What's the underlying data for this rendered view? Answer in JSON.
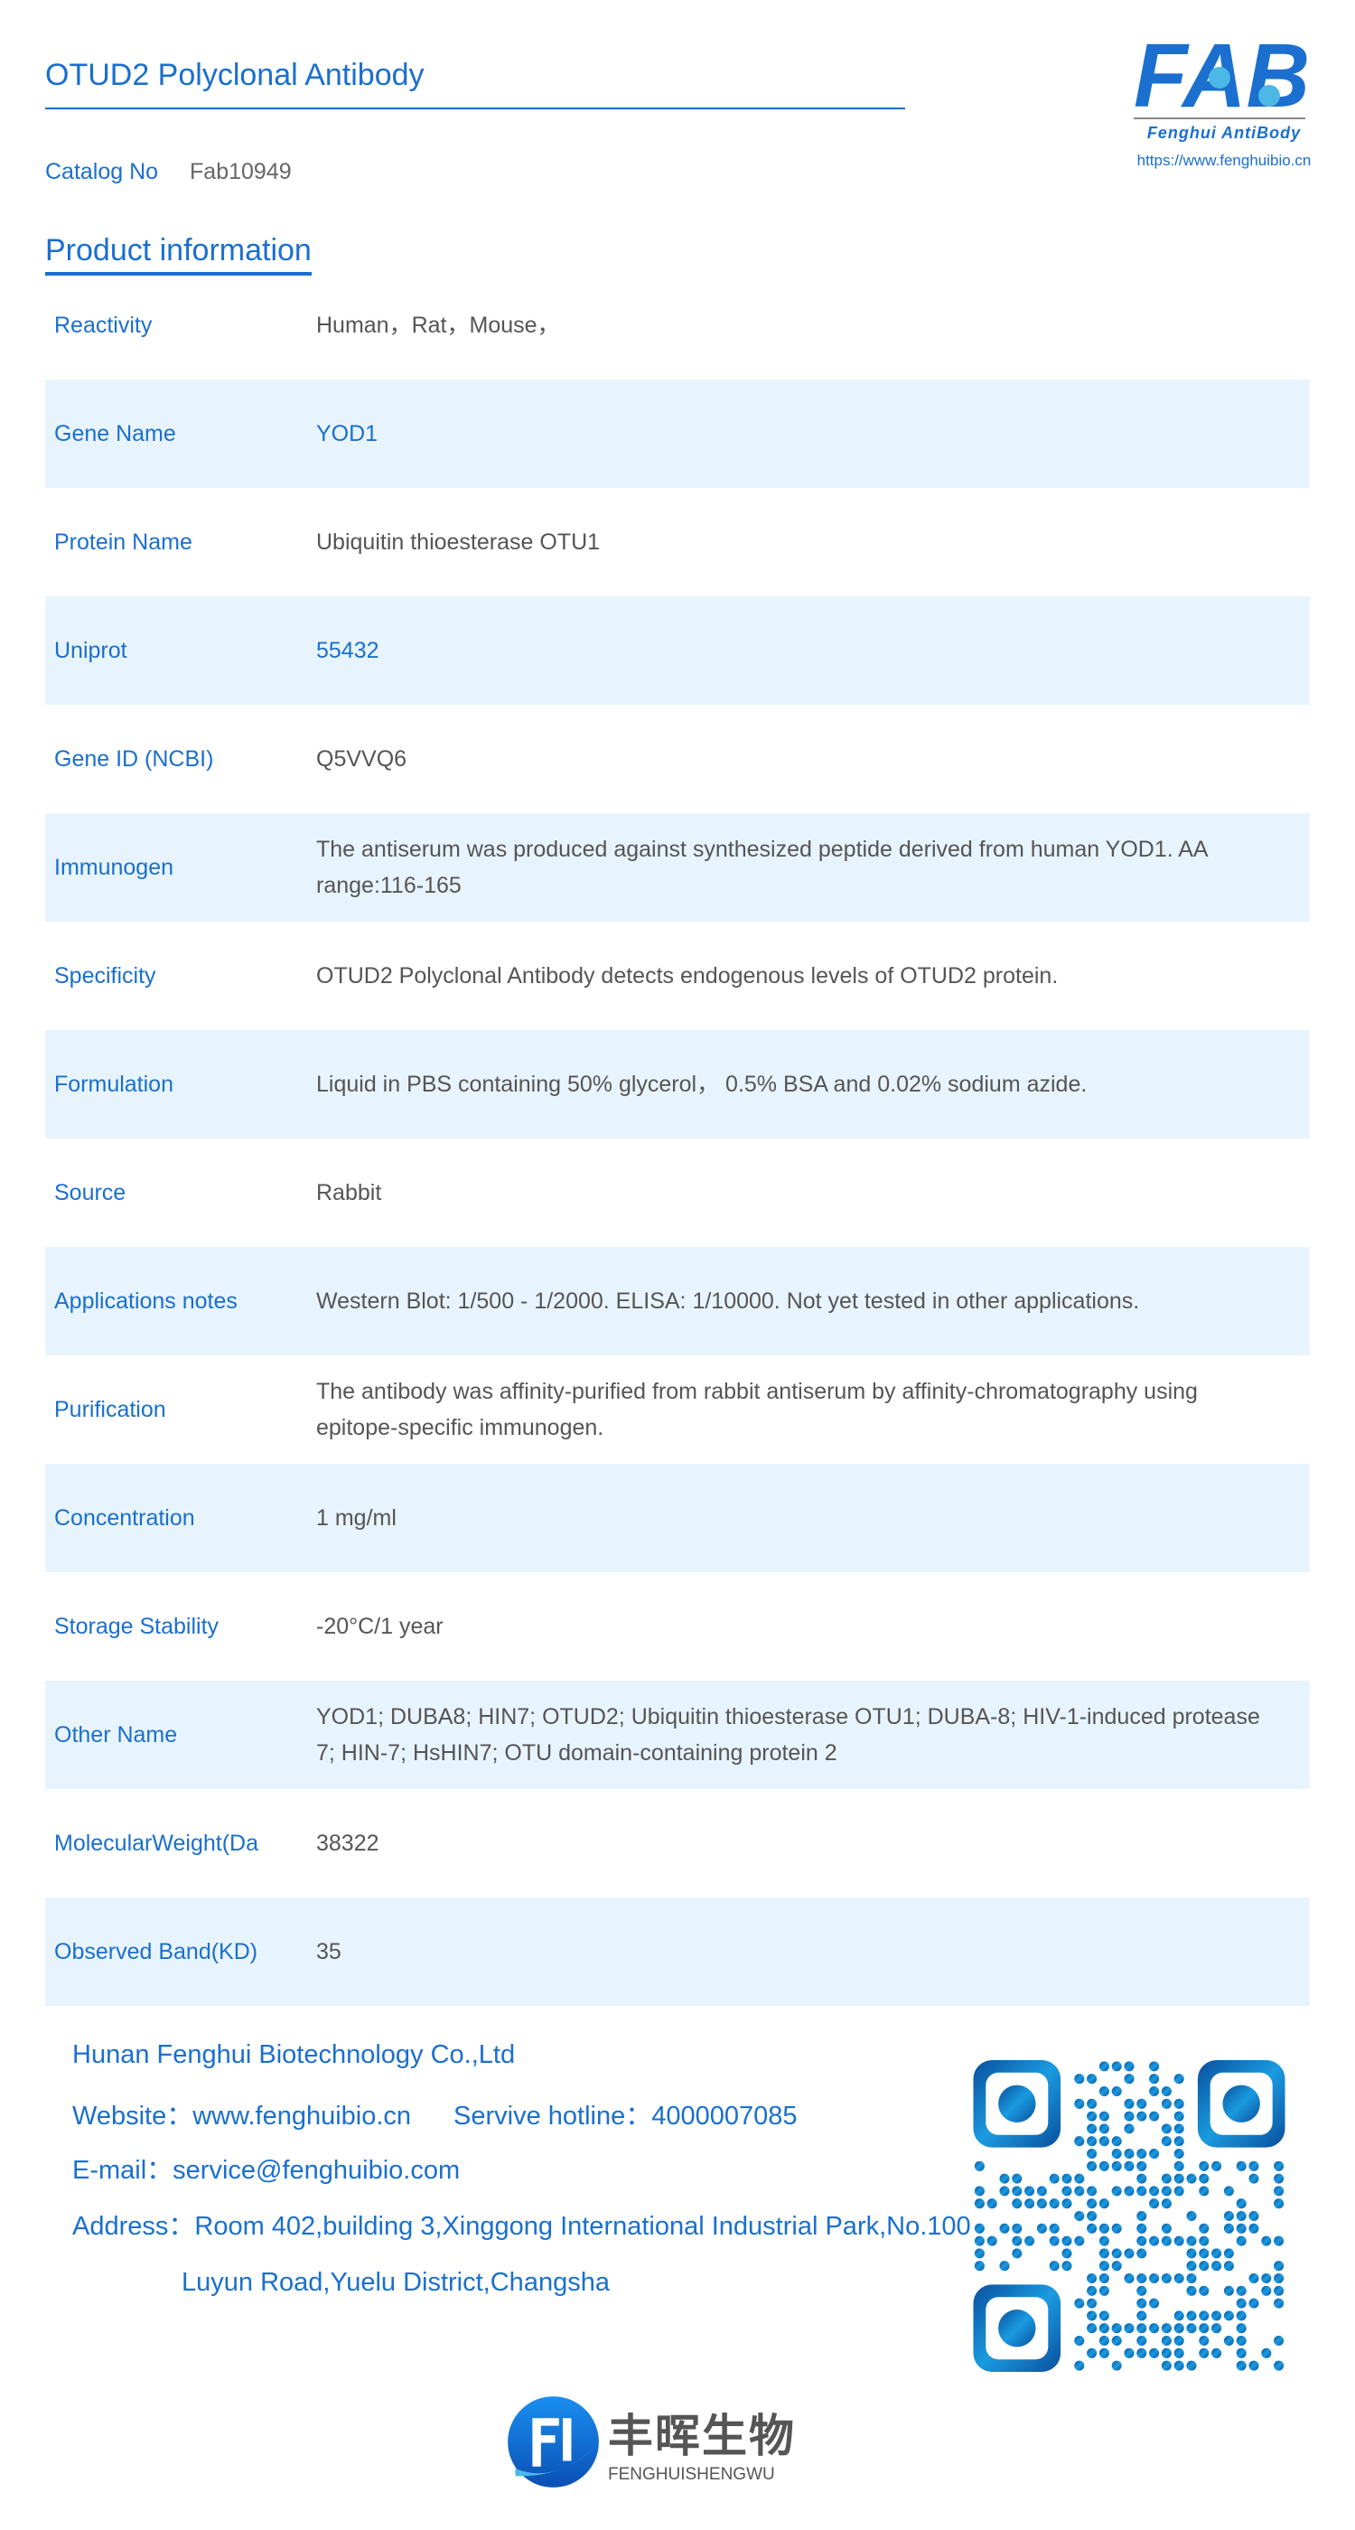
{
  "header": {
    "title": "OTUD2 Polyclonal Antibody",
    "logo_text": "FAB",
    "logo_subtitle": "Fenghui AntiBody",
    "logo_url": "https://www.fenghuibio.cn"
  },
  "catalog": {
    "label": "Catalog No",
    "value": "Fab10949"
  },
  "section_title": "Product information",
  "rows": [
    {
      "label": "Reactivity",
      "value": "Human，Rat，Mouse，"
    },
    {
      "label": "Gene Name",
      "value": "YOD1"
    },
    {
      "label": "Protein Name",
      "value": "Ubiquitin thioesterase OTU1"
    },
    {
      "label": "Uniprot",
      "value": "55432"
    },
    {
      "label": "Gene ID (NCBI)",
      "value": "Q5VVQ6"
    },
    {
      "label": "Immunogen",
      "value": "The antiserum was produced against synthesized peptide derived from human YOD1. AA range:116-165"
    },
    {
      "label": "Specificity",
      "value": "OTUD2 Polyclonal Antibody detects endogenous levels of OTUD2 protein."
    },
    {
      "label": "Formulation",
      "value": "Liquid in PBS containing 50% glycerol， 0.5% BSA and 0.02% sodium azide."
    },
    {
      "label": "Source",
      "value": "Rabbit"
    },
    {
      "label": "Applications notes",
      "value": "Western Blot: 1/500 - 1/2000. ELISA: 1/10000. Not yet tested in other applications."
    },
    {
      "label": "Purification",
      "value": "The antibody was affinity-purified from rabbit antiserum by affinity-chromatography using epitope-specific immunogen."
    },
    {
      "label": "Concentration",
      "value": "1 mg/ml"
    },
    {
      "label": "Storage Stability",
      "value": "-20°C/1 year"
    },
    {
      "label": "Other Name",
      "value": "YOD1; DUBA8; HIN7; OTUD2; Ubiquitin thioesterase OTU1; DUBA-8; HIV-1-induced protease 7; HIN-7; HsHIN7; OTU domain-containing protein 2"
    },
    {
      "label": "MolecularWeight(Da",
      "value": "38322"
    },
    {
      "label": "Observed Band(KD)",
      "value": "35"
    }
  ],
  "footer": {
    "company": "Hunan Fenghui Biotechnology Co.,Ltd",
    "website": "Website：www.fenghuibio.cn",
    "hotline": "Servive hotline：4000007085",
    "email": "E-mail：service@fenghuibio.com",
    "address1": "Address：Room 402,building 3,Xinggong International Industrial Park,No.100",
    "address2": "Luyun Road,Yuelu District,Changsha"
  },
  "bottom_logo": {
    "cn": "丰晖生物",
    "en": "FENGHUISHENGWU"
  },
  "colors": {
    "accent": "#1a6fcf",
    "stripe": "#e8f4fd",
    "value_text": "#555555"
  }
}
